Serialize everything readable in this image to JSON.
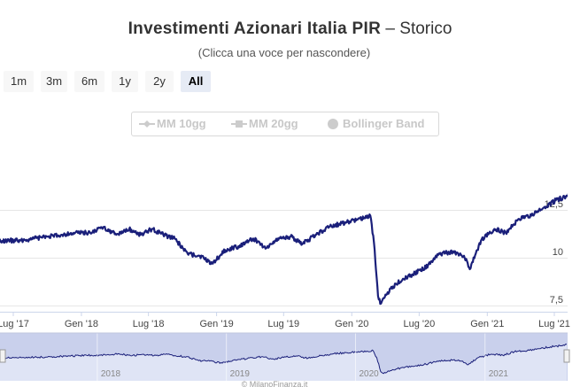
{
  "header": {
    "title_main": "Investimenti Azionari Italia PIR",
    "title_suffix": "Storico",
    "subtitle": "(Clicca una voce per nascondere)"
  },
  "range_selector": {
    "buttons": [
      "1m",
      "3m",
      "6m",
      "1y",
      "2y",
      "All"
    ],
    "selected": "All"
  },
  "indicators": [
    "MM 10gg",
    "MM 20gg",
    "Bollinger Band"
  ],
  "colors": {
    "series": "#1a1f7a",
    "navigator_fill": "#c9d0ec",
    "grid": "#e6e6e6"
  },
  "credit": "© MilanoFinanza.it",
  "chart_data": {
    "type": "line",
    "title": "Investimenti Azionari Italia PIR - Storico",
    "y_ticks": [
      "7,5",
      "10",
      "12,5"
    ],
    "x_ticks": [
      "Lug '17",
      "Gen '18",
      "Lug '18",
      "Gen '19",
      "Lug '19",
      "Gen '20",
      "Lug '20",
      "Gen '21",
      "Lug '21"
    ],
    "navigator_ticks": [
      "2018",
      "2019",
      "2020",
      "2021"
    ],
    "grid": true,
    "series": [
      {
        "x": [
          "2017-04-01",
          "2017-04-10",
          "2017-05-10",
          "2017-06-15",
          "2017-07-20",
          "2017-08-25",
          "2017-10-01",
          "2017-11-10",
          "2017-12-15",
          "2018-01-25",
          "2018-03-01",
          "2018-04-05",
          "2018-05-10",
          "2018-06-10",
          "2018-07-10",
          "2018-08-10",
          "2018-09-10",
          "2018-10-15",
          "2018-11-15",
          "2018-12-20",
          "2019-01-25",
          "2019-03-01",
          "2019-04-10",
          "2019-05-15",
          "2019-06-15",
          "2019-07-20",
          "2019-08-20",
          "2019-09-25",
          "2019-11-01",
          "2019-12-05",
          "2020-01-15",
          "2020-02-20",
          "2020-03-01",
          "2020-03-12",
          "2020-03-20",
          "2020-04-15",
          "2020-05-20",
          "2020-06-20",
          "2020-07-25",
          "2020-08-25",
          "2020-09-30",
          "2020-10-30",
          "2020-11-15",
          "2020-12-15",
          "2021-01-20",
          "2021-02-20",
          "2021-03-25",
          "2021-04-30",
          "2021-06-01",
          "2021-07-05",
          "2021-08-01",
          "2021-08-20"
        ],
        "y": [
          10.1,
          10.7,
          10.8,
          10.9,
          10.9,
          11.0,
          11.1,
          11.2,
          11.3,
          11.3,
          11.6,
          11.2,
          11.5,
          11.2,
          11.5,
          11.2,
          11.0,
          10.2,
          10.1,
          9.7,
          10.4,
          10.6,
          11.0,
          10.5,
          11.0,
          11.1,
          10.7,
          11.2,
          11.6,
          11.8,
          12.0,
          12.2,
          10.8,
          8.0,
          7.6,
          8.4,
          8.9,
          9.2,
          9.6,
          10.2,
          10.3,
          10.1,
          9.4,
          10.9,
          11.5,
          11.3,
          12.0,
          12.2,
          12.6,
          13.0,
          13.2,
          13.5
        ]
      }
    ]
  }
}
